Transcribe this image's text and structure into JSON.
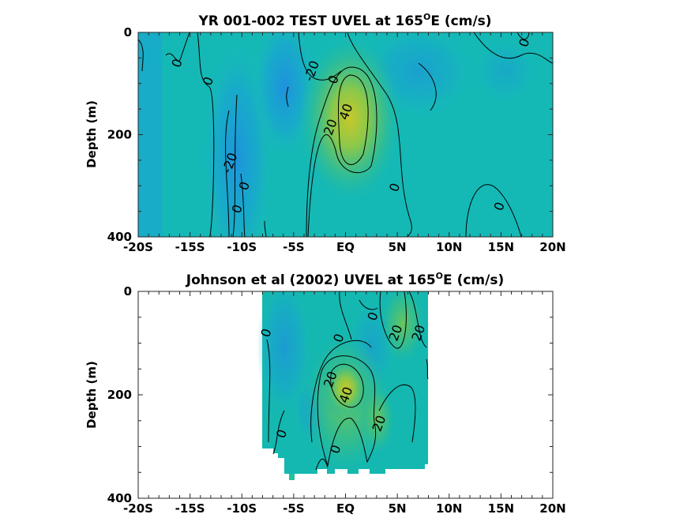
{
  "chart_data": [
    {
      "type": "heatmap",
      "title_main": "YR 001-002 TEST UVEL at 165",
      "title_sup": "O",
      "title_tail": "E (cm/s)",
      "xlabel": "",
      "ylabel": "Depth (m)",
      "xlim": [
        -20,
        20
      ],
      "ylim": [
        400,
        0
      ],
      "xticks": [
        -20,
        -15,
        -10,
        -5,
        0,
        5,
        10,
        15,
        20
      ],
      "xtick_labels": [
        "-20S",
        "-15S",
        "-10S",
        "-5S",
        "EQ",
        "5N",
        "10N",
        "15N",
        "20N"
      ],
      "yticks": [
        0,
        200,
        400
      ],
      "ytick_labels": [
        "0",
        "200",
        "400"
      ],
      "data_extent": {
        "lon": [
          -20,
          20
        ],
        "depth_max": 395
      },
      "features": [
        {
          "kind": "core",
          "lon": 1.0,
          "depth": 140,
          "value": 45
        },
        {
          "kind": "trough",
          "lon": -4.5,
          "depth": 110,
          "value": -25
        },
        {
          "kind": "trough",
          "lon": -10.5,
          "depth": 280,
          "value": -20
        }
      ],
      "contour_levels": [
        -20,
        0,
        20,
        40
      ],
      "contour_labels": [
        {
          "text": "0",
          "lon": -16.3,
          "depth": 60
        },
        {
          "text": "0",
          "lon": -13.3,
          "depth": 95
        },
        {
          "text": "-20",
          "lon": -3.3,
          "depth": 75
        },
        {
          "text": "0",
          "lon": -1.2,
          "depth": 92
        },
        {
          "text": "40",
          "lon": 0.0,
          "depth": 155
        },
        {
          "text": "20",
          "lon": -1.5,
          "depth": 185
        },
        {
          "text": "-20",
          "lon": -11.2,
          "depth": 255
        },
        {
          "text": "0",
          "lon": -9.8,
          "depth": 300
        },
        {
          "text": "0",
          "lon": -10.5,
          "depth": 345
        },
        {
          "text": "0",
          "lon": 4.7,
          "depth": 303
        },
        {
          "text": "0",
          "lon": 14.8,
          "depth": 340
        },
        {
          "text": "0",
          "lon": 17.2,
          "depth": 20
        }
      ]
    },
    {
      "type": "heatmap",
      "title_main": "Johnson et al (2002) UVEL at 165",
      "title_sup": "O",
      "title_tail": "E (cm/s)",
      "xlabel": "",
      "ylabel": "Depth (m)",
      "xlim": [
        -20,
        20
      ],
      "ylim": [
        400,
        0
      ],
      "xticks": [
        -20,
        -15,
        -10,
        -5,
        0,
        5,
        10,
        15,
        20
      ],
      "xtick_labels": [
        "-20S",
        "-15S",
        "-10S",
        "-5S",
        "EQ",
        "5N",
        "10N",
        "15N",
        "20N"
      ],
      "yticks": [
        0,
        200,
        400
      ],
      "ytick_labels": [
        "0",
        "200",
        "400"
      ],
      "data_extent": {
        "lon": [
          -8,
          8
        ],
        "depth_max": 365
      },
      "features": [
        {
          "kind": "core",
          "lon": 0.3,
          "depth": 190,
          "value": 45
        },
        {
          "kind": "core",
          "lon": 5.5,
          "depth": 60,
          "value": 25
        },
        {
          "kind": "core",
          "lon": 3.5,
          "depth": 270,
          "value": 25
        }
      ],
      "contour_levels": [
        -20,
        0,
        20,
        40
      ],
      "contour_labels": [
        {
          "text": "0",
          "lon": -7.7,
          "depth": 80
        },
        {
          "text": "0",
          "lon": -0.7,
          "depth": 90
        },
        {
          "text": "0",
          "lon": 2.6,
          "depth": 48
        },
        {
          "text": "20",
          "lon": 4.8,
          "depth": 80
        },
        {
          "text": "20",
          "lon": 7.0,
          "depth": 80
        },
        {
          "text": "20",
          "lon": -1.5,
          "depth": 170
        },
        {
          "text": "40",
          "lon": 0.0,
          "depth": 200
        },
        {
          "text": "20",
          "lon": 3.2,
          "depth": 255
        },
        {
          "text": "0",
          "lon": -6.2,
          "depth": 275
        },
        {
          "text": "0",
          "lon": -1.0,
          "depth": 305
        }
      ]
    }
  ]
}
